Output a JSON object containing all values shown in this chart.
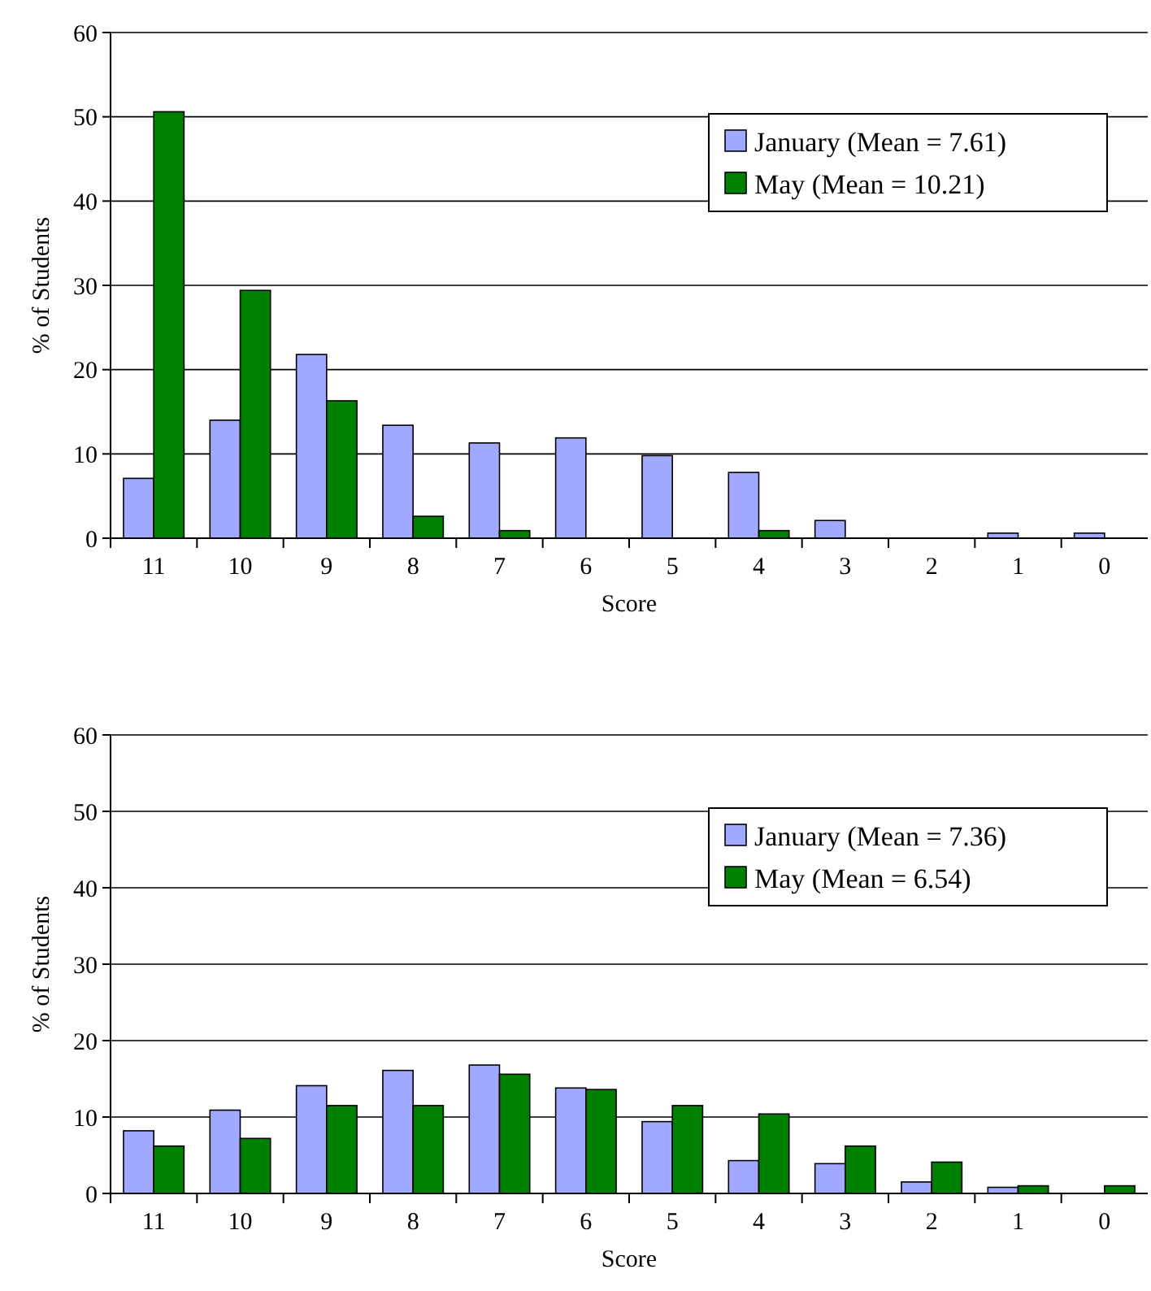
{
  "chart_data": [
    {
      "type": "bar",
      "xlabel": "Score",
      "ylabel": "% of Students",
      "categories": [
        "11",
        "10",
        "9",
        "8",
        "7",
        "6",
        "5",
        "4",
        "3",
        "2",
        "1",
        "0"
      ],
      "ylim": [
        0,
        60
      ],
      "yticks": [
        0,
        10,
        20,
        30,
        40,
        50,
        60
      ],
      "grid": "y",
      "legend": "top right",
      "series": [
        {
          "name": "January (Mean = 7.61)",
          "color": "#a0a8ff",
          "values": [
            7.1,
            14.0,
            21.8,
            13.4,
            11.3,
            11.9,
            9.8,
            7.8,
            2.1,
            0,
            0.6,
            0.6
          ]
        },
        {
          "name": "May (Mean = 10.21)",
          "color": "#008000",
          "values": [
            50.6,
            29.4,
            16.3,
            2.6,
            0.9,
            0,
            0,
            0.9,
            0,
            0,
            0,
            0
          ]
        }
      ]
    },
    {
      "type": "bar",
      "xlabel": "Score",
      "ylabel": "% of Students",
      "categories": [
        "11",
        "10",
        "9",
        "8",
        "7",
        "6",
        "5",
        "4",
        "3",
        "2",
        "1",
        "0"
      ],
      "ylim": [
        0,
        60
      ],
      "yticks": [
        0,
        10,
        20,
        30,
        40,
        50,
        60
      ],
      "grid": "y",
      "legend": "top right",
      "series": [
        {
          "name": "January (Mean = 7.36)",
          "color": "#a0a8ff",
          "values": [
            8.2,
            10.9,
            14.1,
            16.1,
            16.8,
            13.8,
            9.4,
            4.3,
            3.9,
            1.5,
            0.8,
            0
          ]
        },
        {
          "name": "May (Mean = 6.54)",
          "color": "#008000",
          "values": [
            6.2,
            7.2,
            11.5,
            11.5,
            15.6,
            13.6,
            11.5,
            10.4,
            6.2,
            4.1,
            1.0,
            1.0
          ]
        }
      ]
    }
  ]
}
